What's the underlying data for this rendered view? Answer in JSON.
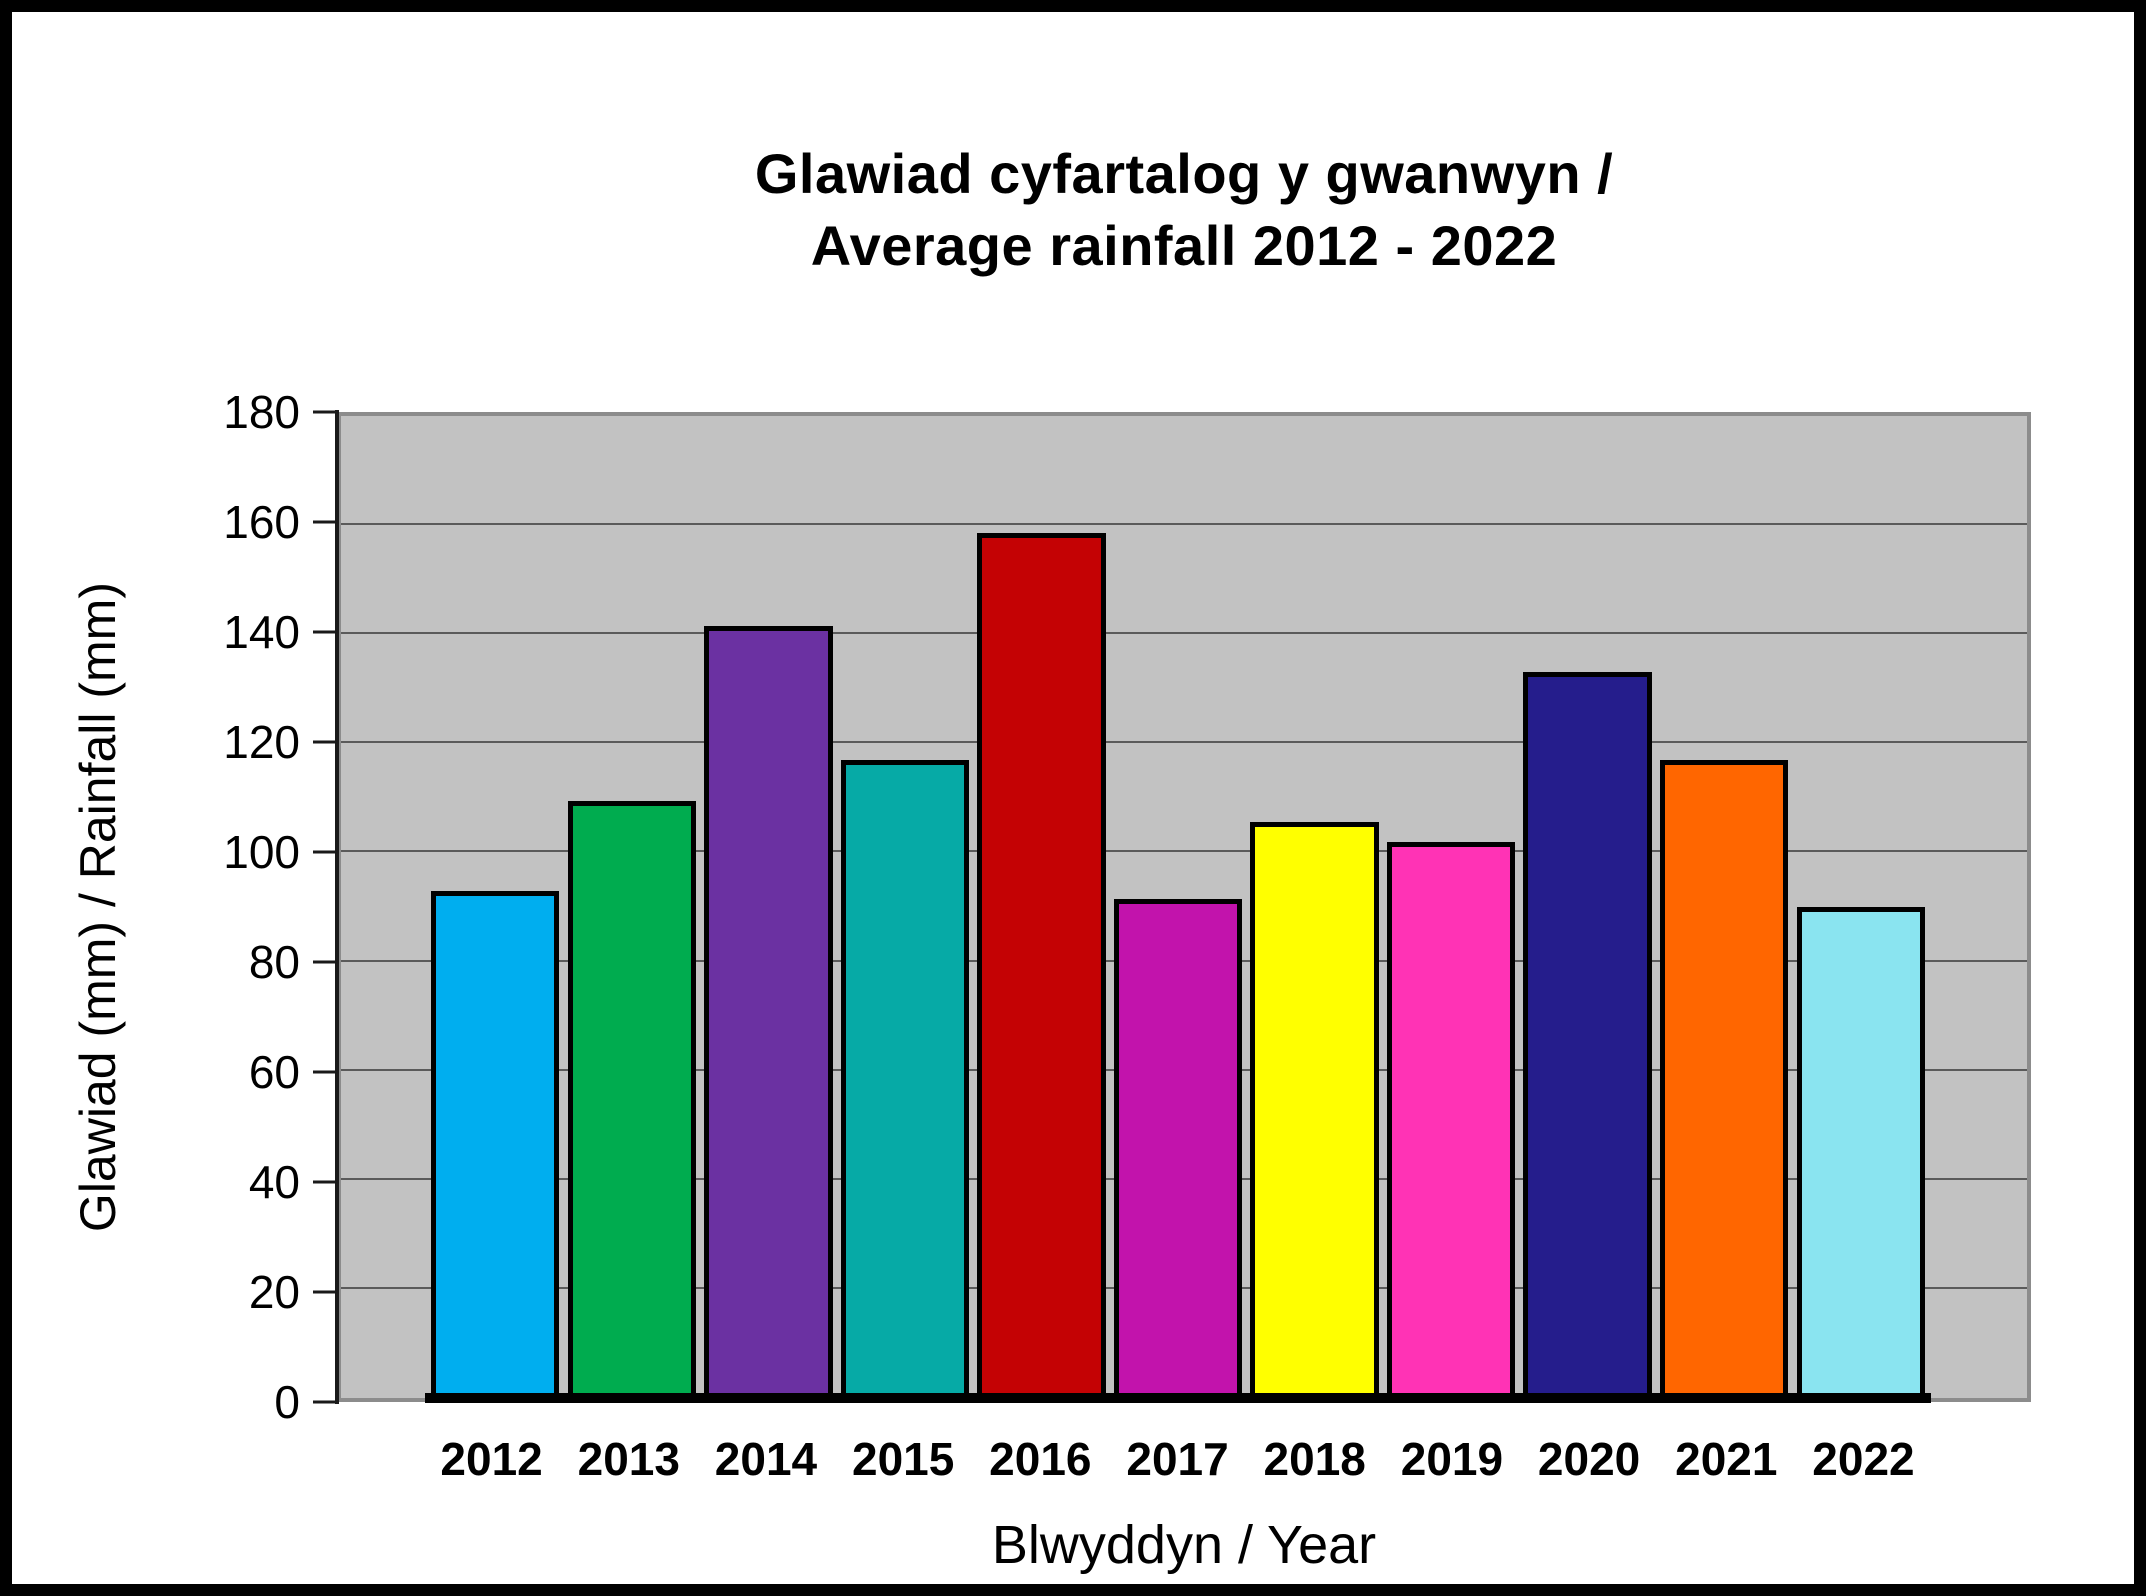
{
  "chart_data": {
    "type": "bar",
    "title": "Glawiad cyfartalog y gwanwyn / Average rainfall 2012 - 2022",
    "title_lines": [
      "Glawiad cyfartalog y gwanwyn /",
      "Average rainfall 2012 - 2022"
    ],
    "xlabel": "Blwyddyn / Year",
    "ylabel": "Glawiad (mm) /  Rainfall (mm)",
    "categories": [
      "2012",
      "2013",
      "2014",
      "2015",
      "2016",
      "2017",
      "2018",
      "2019",
      "2020",
      "2021",
      "2022"
    ],
    "values": [
      93,
      109.5,
      141.5,
      117,
      158.5,
      91.5,
      105.5,
      102,
      133,
      117,
      90
    ],
    "bar_colors": [
      "#00AEEF",
      "#00AC4F",
      "#6B31A2",
      "#06AAA6",
      "#C40204",
      "#C213AC",
      "#FFFF00",
      "#FF33B5",
      "#251D8C",
      "#FF6600",
      "#8AE4F0"
    ],
    "ylim": [
      0,
      180
    ],
    "yticks": [
      0,
      20,
      40,
      60,
      80,
      100,
      120,
      140,
      160,
      180
    ],
    "grid": "horizontal gridlines every 20, on gray plot background",
    "legend": "none",
    "plot_bg": "#C2C2C2",
    "grid_color": "#5A5A5A",
    "bar_outline_color": "#000000",
    "frame_color": "#000000"
  }
}
